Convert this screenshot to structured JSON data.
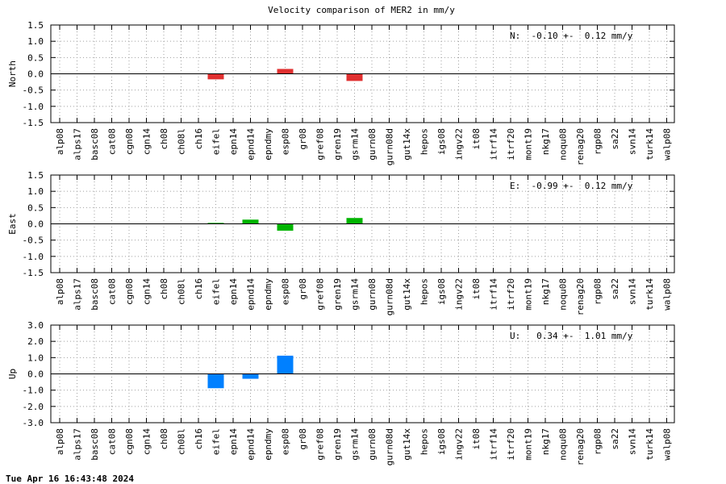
{
  "title": "Velocity comparison of MER2 in mm/y",
  "timestamp": "Tue Apr 16 16:43:48 2024",
  "chart_data": [
    {
      "type": "bar",
      "ylabel": "North",
      "ylim": [
        -1.5,
        1.5
      ],
      "yticks": [
        "1.5",
        "1.0",
        "0.5",
        "0.0",
        "-0.5",
        "-1.0",
        "-1.5"
      ],
      "ytick_values": [
        1.5,
        1.0,
        0.5,
        0.0,
        -0.5,
        -1.0,
        -1.5
      ],
      "grid": true,
      "color": "#e03030",
      "annotation": "N:  -0.10 +-  0.12 mm/y",
      "categories": [
        "alp08",
        "alps17",
        "basc08",
        "cat08",
        "cgn08",
        "cgn14",
        "ch08",
        "ch08l",
        "ch16",
        "eifel",
        "epn14",
        "epnd14",
        "epndmy",
        "esp08",
        "gr08",
        "gref08",
        "gren19",
        "gsrm14",
        "gurn08",
        "gurn08d",
        "gut14x",
        "hepos",
        "igs08",
        "ingv22",
        "it08",
        "itrf14",
        "itrf20",
        "mont19",
        "nkg17",
        "noqu08",
        "renag20",
        "rgp08",
        "sa22",
        "svn14",
        "turk14",
        "walp08"
      ],
      "values": [
        0,
        0,
        0,
        0,
        0,
        0,
        0,
        0,
        0,
        -0.17,
        0,
        0,
        0,
        0.15,
        0,
        0,
        0,
        -0.22,
        0,
        0,
        0,
        0,
        0,
        0,
        0,
        0,
        0,
        0,
        0,
        0,
        0,
        0,
        0,
        0,
        0,
        0
      ]
    },
    {
      "type": "bar",
      "ylabel": "East",
      "ylim": [
        -1.5,
        1.5
      ],
      "yticks": [
        "1.5",
        "1.0",
        "0.5",
        "0.0",
        "-0.5",
        "-1.0",
        "-1.5"
      ],
      "ytick_values": [
        1.5,
        1.0,
        0.5,
        0.0,
        -0.5,
        -1.0,
        -1.5
      ],
      "grid": true,
      "color": "#00b400",
      "annotation": "E:  -0.99 +-  0.12 mm/y",
      "categories": [
        "alp08",
        "alps17",
        "basc08",
        "cat08",
        "cgn08",
        "cgn14",
        "ch08",
        "ch08l",
        "ch16",
        "eifel",
        "epn14",
        "epnd14",
        "epndmy",
        "esp08",
        "gr08",
        "gref08",
        "gren19",
        "gsrm14",
        "gurn08",
        "gurn08d",
        "gut14x",
        "hepos",
        "igs08",
        "ingv22",
        "it08",
        "itrf14",
        "itrf20",
        "mont19",
        "nkg17",
        "noqu08",
        "renag20",
        "rgp08",
        "sa22",
        "svn14",
        "turk14",
        "walp08"
      ],
      "values": [
        0,
        0,
        0,
        0,
        0,
        0,
        0,
        0,
        0,
        0.03,
        0,
        0.13,
        0,
        -0.21,
        0,
        0,
        0,
        0.18,
        0,
        0,
        0,
        0,
        0,
        0,
        0,
        0,
        0,
        0,
        0,
        0,
        0,
        0,
        0,
        0,
        0,
        0
      ]
    },
    {
      "type": "bar",
      "ylabel": "Up",
      "ylim": [
        -3.0,
        3.0
      ],
      "yticks": [
        "3.0",
        "2.0",
        "1.0",
        "0.0",
        "-1.0",
        "-2.0",
        "-3.0"
      ],
      "ytick_values": [
        3.0,
        2.0,
        1.0,
        0.0,
        -1.0,
        -2.0,
        -3.0
      ],
      "grid": true,
      "color": "#0080ff",
      "annotation": "U:   0.34 +-  1.01 mm/y",
      "categories": [
        "alp08",
        "alps17",
        "basc08",
        "cat08",
        "cgn08",
        "cgn14",
        "ch08",
        "ch08l",
        "ch16",
        "eifel",
        "epn14",
        "epnd14",
        "epndmy",
        "esp08",
        "gr08",
        "gref08",
        "gren19",
        "gsrm14",
        "gurn08",
        "gurn08d",
        "gut14x",
        "hepos",
        "igs08",
        "ingv22",
        "it08",
        "itrf14",
        "itrf20",
        "mont19",
        "nkg17",
        "noqu08",
        "renag20",
        "rgp08",
        "sa22",
        "svn14",
        "turk14",
        "walp08"
      ],
      "values": [
        0,
        0,
        0,
        0,
        0,
        0,
        0,
        0,
        0,
        -0.88,
        0,
        -0.3,
        0,
        1.12,
        0,
        0,
        0,
        0,
        0,
        0,
        0,
        0,
        0,
        0,
        0,
        0,
        0,
        0,
        0,
        0,
        0,
        0,
        0,
        0,
        0,
        0
      ]
    }
  ]
}
